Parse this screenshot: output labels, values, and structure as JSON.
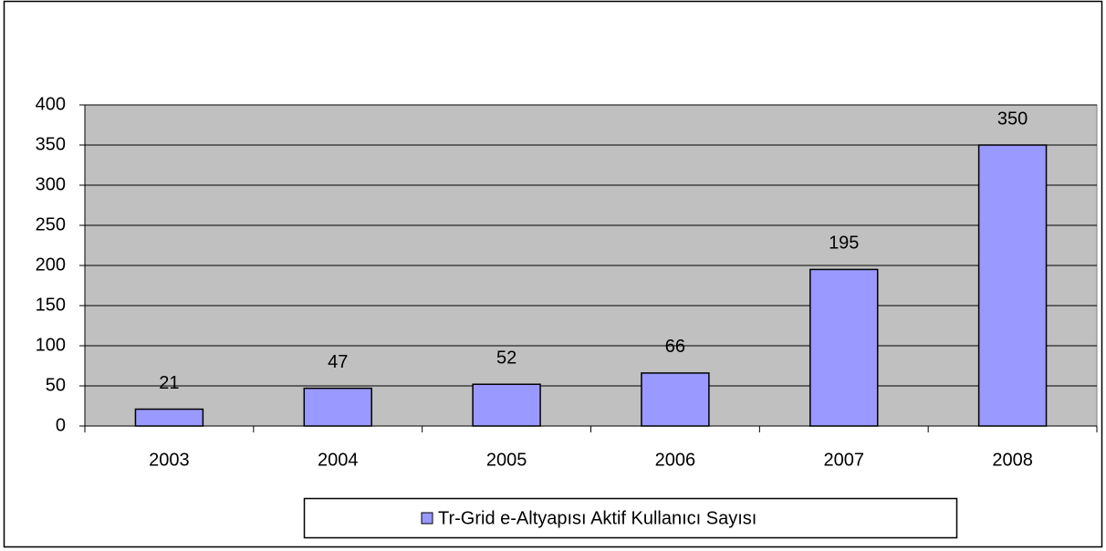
{
  "chart_data": {
    "type": "bar",
    "categories": [
      "2003",
      "2004",
      "2005",
      "2006",
      "2007",
      "2008"
    ],
    "series": [
      {
        "name": "Tr-Grid e-Altyapısı Aktif Kullanıcı Sayısı",
        "color": "#9999ff",
        "values": [
          21,
          47,
          52,
          66,
          195,
          350
        ]
      }
    ],
    "ylim": [
      0,
      400
    ],
    "yticks": [
      0,
      50,
      100,
      150,
      200,
      250,
      300,
      350,
      400
    ],
    "grid": true,
    "legend": "bottom"
  }
}
